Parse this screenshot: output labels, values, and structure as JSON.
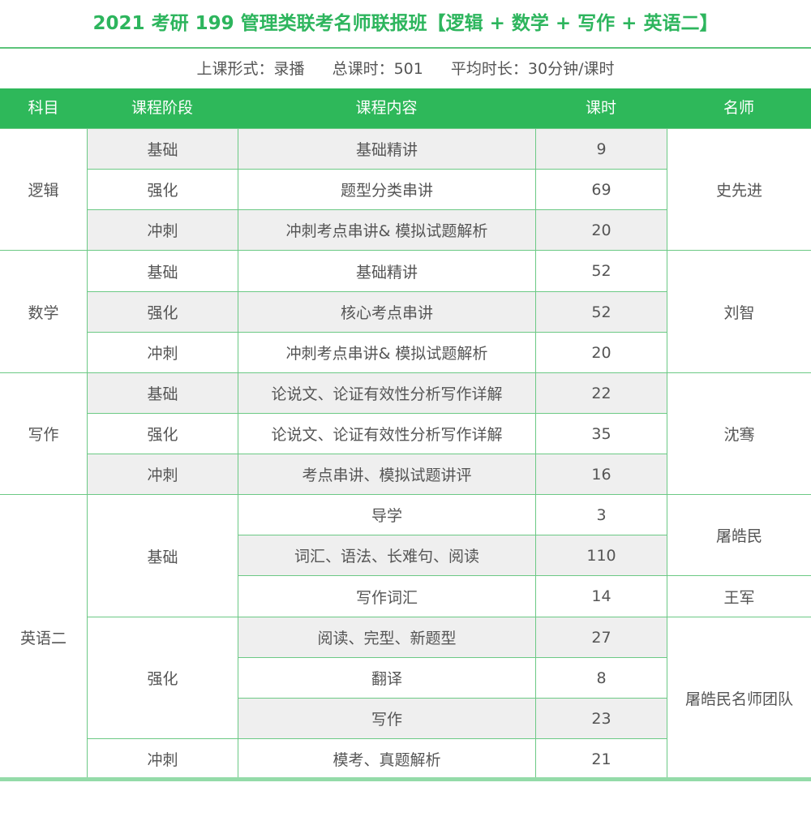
{
  "title": "2021 考研 199 管理类联考名师联报班【逻辑 + 数学 + 写作 + 英语二】",
  "info": {
    "format": "上课形式：录播",
    "total_hours": "总课时：501",
    "avg_duration": "平均时长：30分钟/课时"
  },
  "columns": [
    "科目",
    "课程阶段",
    "课程内容",
    "课时",
    "名师"
  ],
  "subjects": [
    "逻辑",
    "数学",
    "写作",
    "英语二"
  ],
  "stages": [
    "基础",
    "强化",
    "冲刺",
    "基础",
    "强化",
    "冲刺",
    "基础",
    "强化",
    "冲刺",
    "基础",
    "强化",
    "冲刺"
  ],
  "contents": [
    "基础精讲",
    "题型分类串讲",
    "冲刺考点串讲& 模拟试题解析",
    "基础精讲",
    "核心考点串讲",
    "冲刺考点串讲& 模拟试题解析",
    "论说文、论证有效性分析写作详解",
    "论说文、论证有效性分析写作详解",
    "考点串讲、模拟试题讲评",
    "导学",
    "词汇、语法、长难句、阅读",
    "写作词汇",
    "阅读、完型、新题型",
    "翻译",
    "写作",
    "模考、真题解析"
  ],
  "hours": [
    "9",
    "69",
    "20",
    "52",
    "52",
    "20",
    "22",
    "35",
    "16",
    "3",
    "110",
    "14",
    "27",
    "8",
    "23",
    "21"
  ],
  "teachers": [
    "史先进",
    "刘智",
    "沈骞",
    "屠皓民",
    "王军",
    "屠皓民名师团队"
  ],
  "colors": {
    "accent": "#2eb85a",
    "row_alt": "#efefef",
    "text": "#555555"
  }
}
